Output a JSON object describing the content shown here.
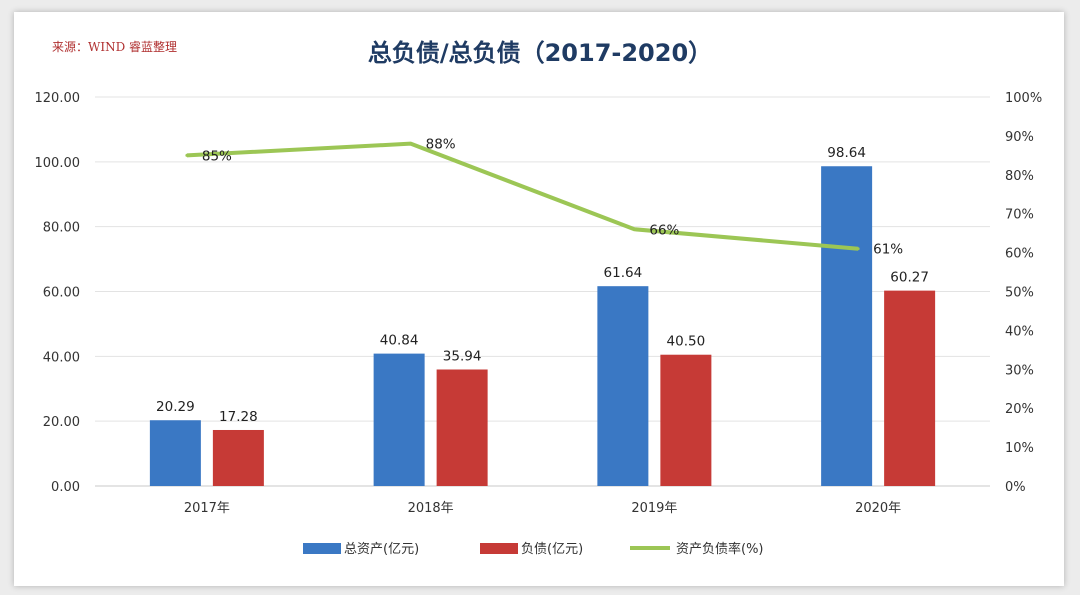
{
  "source": "来源：WIND 睿蓝整理",
  "chart_data": {
    "type": "bar",
    "title": "总负债/总负债（2017-2020）",
    "categories": [
      "2017年",
      "2018年",
      "2019年",
      "2020年"
    ],
    "series": [
      {
        "name": "总资产(亿元)",
        "type": "bar",
        "axis": "left",
        "color": "#3a78c4",
        "values": [
          20.29,
          40.84,
          61.64,
          98.64
        ],
        "labels": [
          "20.29",
          "40.84",
          "61.64",
          "98.64"
        ]
      },
      {
        "name": "负债(亿元)",
        "type": "bar",
        "axis": "left",
        "color": "#c63a36",
        "values": [
          17.28,
          35.94,
          40.5,
          60.27
        ],
        "labels": [
          "17.28",
          "35.94",
          "40.50",
          "60.27"
        ]
      },
      {
        "name": "资产负债率(%)",
        "type": "line",
        "axis": "right",
        "color": "#9cc655",
        "values": [
          85,
          88,
          66,
          61
        ],
        "labels": [
          "85%",
          "88%",
          "66%",
          "61%"
        ]
      }
    ],
    "left_axis": {
      "ylim": [
        0,
        120
      ],
      "ticks": [
        "0.00",
        "20.00",
        "40.00",
        "60.00",
        "80.00",
        "100.00",
        "120.00"
      ]
    },
    "right_axis": {
      "ylim": [
        0,
        100
      ],
      "ticks": [
        "0%",
        "10%",
        "20%",
        "30%",
        "40%",
        "50%",
        "60%",
        "70%",
        "80%",
        "90%",
        "100%"
      ]
    },
    "grid": true,
    "legend_position": "bottom"
  }
}
